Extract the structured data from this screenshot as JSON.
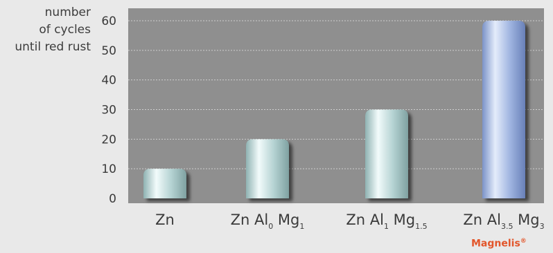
{
  "chart_data": {
    "type": "bar",
    "ylabel_lines": [
      "number",
      "of cycles",
      "until red rust"
    ],
    "categories": [
      {
        "parts": [
          {
            "t": "Zn"
          }
        ]
      },
      {
        "parts": [
          {
            "t": "Zn Al"
          },
          {
            "sub": "0"
          },
          {
            "t": " Mg"
          },
          {
            "sub": "1"
          }
        ]
      },
      {
        "parts": [
          {
            "t": "Zn Al"
          },
          {
            "sub": "1"
          },
          {
            "t": " Mg"
          },
          {
            "sub": "1.5"
          }
        ]
      },
      {
        "parts": [
          {
            "t": "Zn Al"
          },
          {
            "sub": "3.5"
          },
          {
            "t": " Mg"
          },
          {
            "sub": "3"
          }
        ]
      }
    ],
    "values": [
      10,
      20,
      30,
      60
    ],
    "highlight_index": 3,
    "ylim": [
      0,
      60
    ],
    "yticks": [
      0,
      10,
      20,
      30,
      40,
      50,
      60
    ],
    "grid": true,
    "colors": {
      "plot_background": "#8f8f8f",
      "bar": "#a9c9c9",
      "bar_highlight": "#8aa2d4",
      "grid": "#cfcfcf",
      "brand": "#e2552a"
    },
    "brand": {
      "name": "Magnelis",
      "mark": "®"
    }
  }
}
